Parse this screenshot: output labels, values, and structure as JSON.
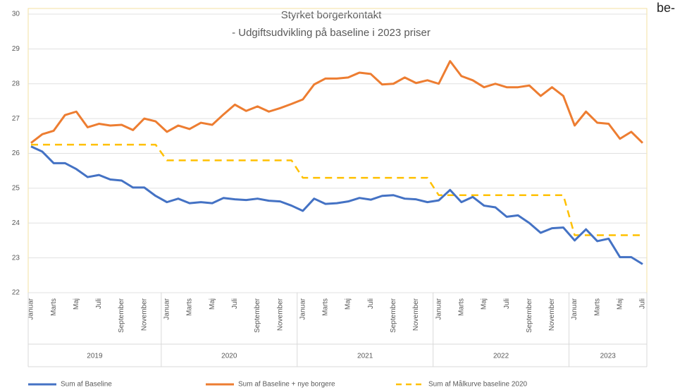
{
  "chart_data": {
    "type": "line",
    "title": "Styrket borgerkontakt",
    "subtitle": "- Udgiftsudvikling på baseline i 2023 priser",
    "categories": [
      "Januar",
      null,
      "Marts",
      null,
      "Maj",
      null,
      "Juli",
      null,
      "September",
      null,
      "November",
      null,
      "Januar",
      null,
      "Marts",
      null,
      "Maj",
      null,
      "Juli",
      null,
      "September",
      null,
      "November",
      null,
      "Januar",
      null,
      "Marts",
      null,
      "Maj",
      null,
      "Juli",
      null,
      "September",
      null,
      "November",
      null,
      "Januar",
      null,
      "Marts",
      null,
      "Maj",
      null,
      "Juli",
      null,
      "September",
      null,
      "November",
      null,
      "Januar",
      null,
      "Marts",
      null,
      "Maj",
      null,
      "Juli"
    ],
    "groups": [
      "2019",
      "2020",
      "2021",
      "2022",
      "2023"
    ],
    "series": [
      {
        "name": "Sum af Baseline",
        "color": "#4472c4",
        "style": "solid",
        "values": [
          26.2,
          26.05,
          25.72,
          25.72,
          25.55,
          25.32,
          25.38,
          25.25,
          25.22,
          25.02,
          25.02,
          24.78,
          24.6,
          24.7,
          24.57,
          24.6,
          24.57,
          24.72,
          24.68,
          24.66,
          24.7,
          24.64,
          24.62,
          24.5,
          24.35,
          24.7,
          24.55,
          24.57,
          24.62,
          24.72,
          24.67,
          24.78,
          24.8,
          24.7,
          24.68,
          24.6,
          24.65,
          24.95,
          24.6,
          24.75,
          24.5,
          24.45,
          24.18,
          24.22,
          24.0,
          23.72,
          23.85,
          23.87,
          23.5,
          23.82,
          23.48,
          23.55,
          23.02,
          23.02,
          22.82
        ]
      },
      {
        "name": "Sum af Baseline + nye borgere",
        "color": "#ed7d31",
        "style": "solid",
        "values": [
          26.3,
          26.55,
          26.65,
          27.1,
          27.2,
          26.75,
          26.85,
          26.8,
          26.82,
          26.67,
          27.0,
          26.92,
          26.62,
          26.8,
          26.7,
          26.88,
          26.82,
          27.12,
          27.4,
          27.22,
          27.35,
          27.2,
          27.3,
          27.42,
          27.55,
          27.98,
          28.15,
          28.15,
          28.18,
          28.32,
          28.28,
          27.98,
          28.0,
          28.18,
          28.02,
          28.1,
          28.0,
          28.65,
          28.22,
          28.1,
          27.9,
          28.0,
          27.9,
          27.9,
          27.95,
          27.65,
          27.9,
          27.65,
          26.8,
          27.2,
          26.88,
          26.85,
          26.42,
          26.62,
          26.3
        ]
      },
      {
        "name": "Sum af Målkurve baseline 2020",
        "color": "#ffc000",
        "style": "dashed",
        "values": [
          26.25,
          26.25,
          26.25,
          26.25,
          26.25,
          26.25,
          26.25,
          26.25,
          26.25,
          26.25,
          26.25,
          26.25,
          25.8,
          25.8,
          25.8,
          25.8,
          25.8,
          25.8,
          25.8,
          25.8,
          25.8,
          25.8,
          25.8,
          25.8,
          25.3,
          25.3,
          25.3,
          25.3,
          25.3,
          25.3,
          25.3,
          25.3,
          25.3,
          25.3,
          25.3,
          25.3,
          24.8,
          24.8,
          24.8,
          24.8,
          24.8,
          24.8,
          24.8,
          24.8,
          24.8,
          24.8,
          24.8,
          24.8,
          23.65,
          23.65,
          23.65,
          23.65,
          23.65,
          23.65,
          23.65
        ]
      }
    ],
    "ylim": [
      22,
      30
    ],
    "yticks": [
      22,
      23,
      24,
      25,
      26,
      27,
      28,
      29,
      30
    ],
    "grid": true,
    "legend": "bottom"
  },
  "corner_text": "be-"
}
